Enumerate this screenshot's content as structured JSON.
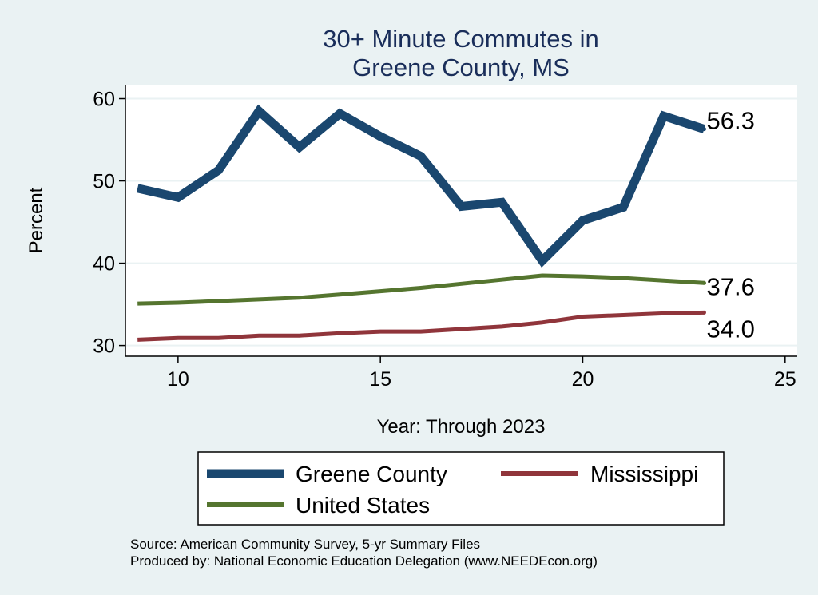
{
  "chart_data": {
    "type": "line",
    "title": [
      "30+ Minute Commutes in",
      "Greene County, MS"
    ],
    "xlabel": "Year: Through 2023",
    "ylabel": "Percent",
    "xlim": [
      8.7,
      25.3
    ],
    "ylim": [
      28.7,
      61.7
    ],
    "xticks": [
      10,
      15,
      20,
      25
    ],
    "yticks": [
      30,
      40,
      50,
      60
    ],
    "grid": true,
    "legend_position": "bottom",
    "series": [
      {
        "name": "Greene County",
        "color": "#1a476f",
        "x": [
          9,
          10,
          11,
          12,
          13,
          14,
          15,
          16,
          17,
          18,
          19,
          20,
          21,
          22,
          23
        ],
        "values": [
          49.1,
          48.0,
          51.3,
          58.5,
          54.1,
          58.2,
          55.4,
          53.0,
          46.9,
          47.4,
          40.3,
          45.2,
          46.8,
          57.9,
          56.3
        ],
        "end_label": "56.3"
      },
      {
        "name": "Mississippi",
        "color": "#90353b",
        "x": [
          9,
          10,
          11,
          12,
          13,
          14,
          15,
          16,
          17,
          18,
          19,
          20,
          21,
          22,
          23
        ],
        "values": [
          30.7,
          30.9,
          30.9,
          31.2,
          31.2,
          31.5,
          31.7,
          31.7,
          32.0,
          32.3,
          32.8,
          33.5,
          33.7,
          33.9,
          34.0
        ],
        "end_label": "34.0"
      },
      {
        "name": "United States",
        "color": "#55752f",
        "x": [
          9,
          10,
          11,
          12,
          13,
          14,
          15,
          16,
          17,
          18,
          19,
          20,
          21,
          22,
          23
        ],
        "values": [
          35.1,
          35.2,
          35.4,
          35.6,
          35.8,
          36.2,
          36.6,
          37.0,
          37.5,
          38.0,
          38.5,
          38.4,
          38.2,
          37.9,
          37.6
        ],
        "end_label": "37.6"
      }
    ],
    "source": [
      "Source: American Community Survey, 5-yr Summary Files",
      "Produced by: National Economic Education Delegation (www.NEEDEcon.org)"
    ]
  },
  "colors": {
    "background": "#eaf2f3",
    "plot_background": "#ffffff",
    "grid": "#eaf2f3",
    "title": "#1a2e5a"
  }
}
